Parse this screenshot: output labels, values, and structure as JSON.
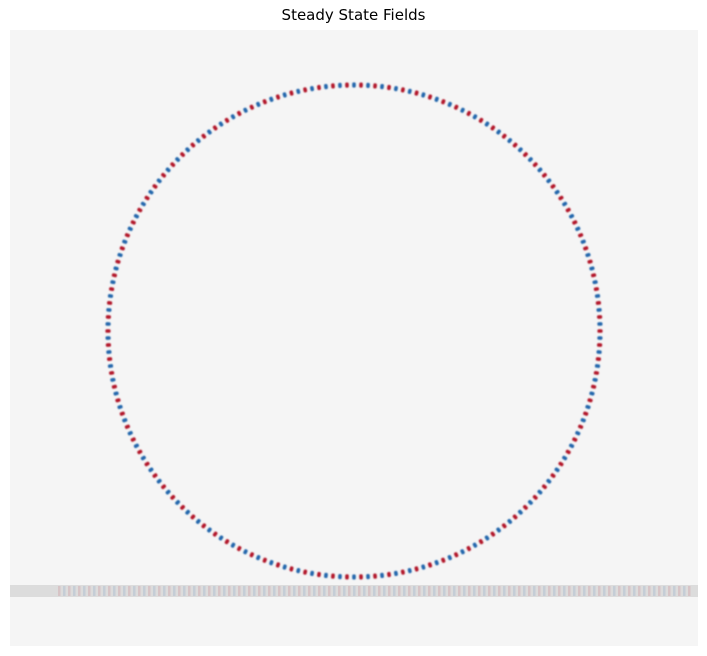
{
  "figure": {
    "title": "Steady State Fields"
  },
  "colors": {
    "background": "#f5f5f5",
    "positive": "#b2182b",
    "negative": "#2166ac",
    "waveguide": "#dcdcdc"
  },
  "field": {
    "ring_mode_periods": 110
  }
}
